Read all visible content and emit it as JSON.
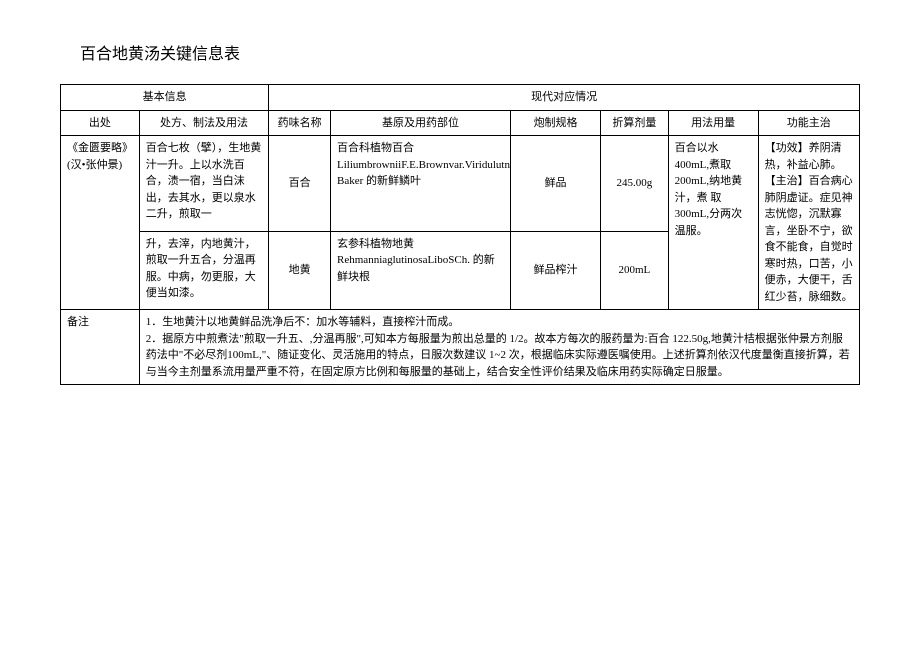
{
  "title": "百合地黄汤关键信息表",
  "headers": {
    "basic_info": "基本信息",
    "modern_info": "现代对应情况",
    "source": "出处",
    "recipe": "处方、制法及用法",
    "drug_name": "药味名称",
    "origin": "基原及用药部位",
    "prep": "炮制规格",
    "dose": "折算剂量",
    "usage": "用法用量",
    "indication": "功能主治"
  },
  "source_text": "《金匮要略》(汉•张仲景)",
  "recipe_part1": "百合七枚（擘），生地黄汁一升。上以水洗百合，渍一宿，当白沫出，去其水，更以泉水二升，煎取一",
  "recipe_part2": "升，去滓，内地黄汁，煎取一升五合，分温再服。中病，勿更服，大便当如漆。",
  "row1": {
    "drug_name": "百合",
    "origin": "百合科植物百合 LiliumbrowniiF.E.Brownvar.Viridulutn Baker 的新鲜鳞叶",
    "prep": "鲜品",
    "dose": "245.00g"
  },
  "row2": {
    "drug_name": "地黄",
    "origin": "玄参科植物地黄 RehmanniaglutinosaLiboSCh. 的新鲜块根",
    "prep": "鲜品榨汁",
    "dose": "200mL"
  },
  "usage_text": "百合以水400mL,煮取200mL,纳地黄汁，煮 取300mL,分两次温服。",
  "indication_text": "【功效】养阴清热，补益心肺。\n【主治】百合病心肺阴虚证。症见神志恍惚，沉默寡言，坐卧不宁，欲食不能食，自觉时寒时热，口苦，小便赤，大便干，舌红少苔，脉细数。",
  "notes_label": "备注",
  "notes_text": "1．生地黄汁以地黄鲜品洗净后不：加水等辅料，直接榨汁而成。\n2．据原方中煎煮法\"煎取一升五、,分温再服\",可知本方每服量为煎出总量的 1/2。故本方每次的服药量为:百合 122.50g,地黄汁桔根据张仲景方剂服药法中\"不必尽剂100mL,\"、随证变化、灵活施用的特点，日服次数建议 1~2 次，根据临床实际遵医嘱使用。上述折算剂依汉代度量衡直接折算，若与当今主剂量系流用量严重不符，在固定原方比例和每服量的基础上，结合安全性评价结果及临床用药实际确定日服量。"
}
